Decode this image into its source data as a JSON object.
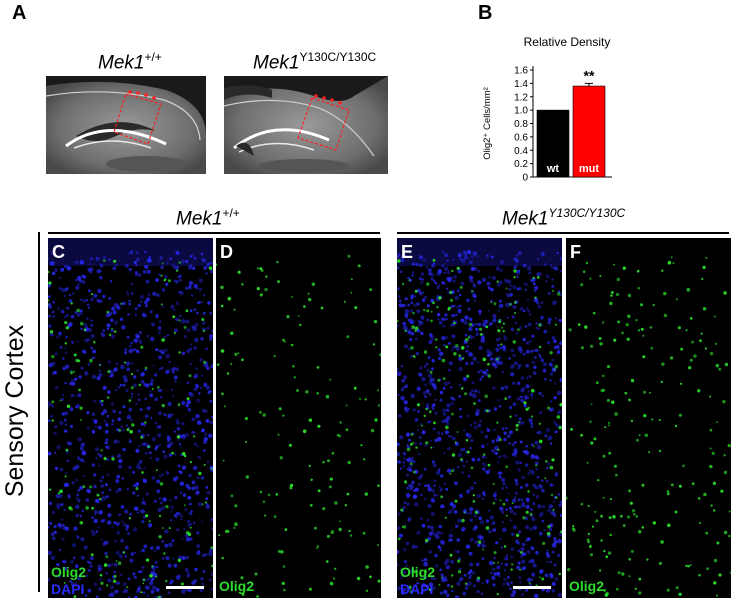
{
  "panel_a": {
    "letter": "A",
    "wt_label": {
      "gene": "Mek1",
      "sup": "+/+"
    },
    "mut_label": {
      "gene": "Mek1",
      "sup": "Y130C/Y130C"
    }
  },
  "panel_b": {
    "letter": "B",
    "significance": "**"
  },
  "chart_data": {
    "type": "bar",
    "title": "Relative Density",
    "ylabel": "Olig2⁺ Cells/mm²",
    "categories": [
      "wt",
      "mut"
    ],
    "values": [
      1.0,
      1.36
    ],
    "error": [
      0.0,
      0.04
    ],
    "ylim": [
      0,
      1.6
    ],
    "yticks": [
      "1.6",
      "1.4",
      "1.2",
      "1.0",
      "0.8",
      "0.6",
      "0.4",
      "0.2",
      "0"
    ],
    "bar_colors": [
      "#000000",
      "#ff0000"
    ],
    "grid": false
  },
  "lower": {
    "wt_header": {
      "gene": "Mek1",
      "sup": "+/+"
    },
    "mut_header": {
      "gene": "Mek1",
      "sup": "Y130C/Y130C"
    },
    "side_label": "Sensory Cortex",
    "panels": [
      {
        "letter": "C",
        "label1": "Olig2",
        "label2": "DAPI"
      },
      {
        "letter": "D",
        "label1": "Olig2"
      },
      {
        "letter": "E",
        "label1": "Olig2",
        "label2": "DAPI"
      },
      {
        "letter": "F",
        "label1": "Olig2"
      }
    ],
    "colors": {
      "olig2": "#2bdc2b",
      "dapi": "#2a2aff"
    }
  }
}
